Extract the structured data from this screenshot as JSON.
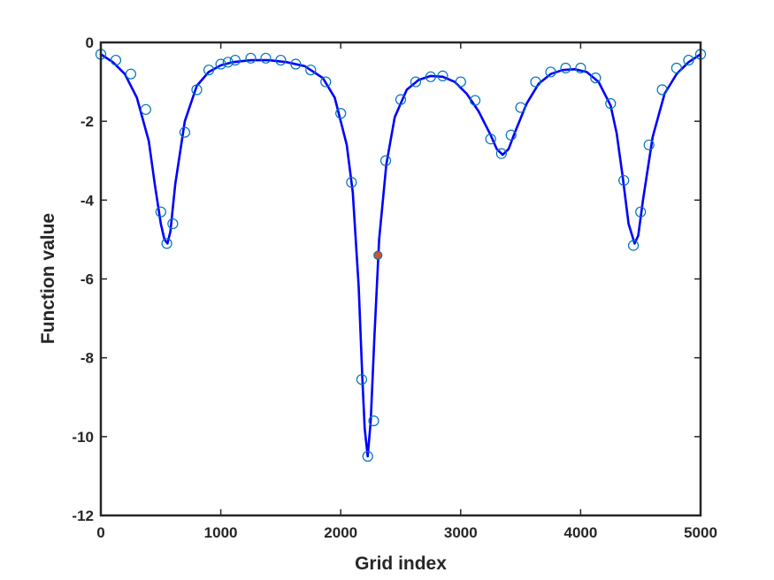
{
  "chart_data": {
    "type": "line",
    "title": "",
    "xlabel": "Grid index",
    "ylabel": "Function value",
    "xlim": [
      0,
      5000
    ],
    "ylim": [
      -12,
      0
    ],
    "xticks": [
      0,
      1000,
      2000,
      3000,
      4000,
      5000
    ],
    "yticks": [
      0,
      -2,
      -4,
      -6,
      -8,
      -10,
      -12
    ],
    "xtick_labels": [
      "0",
      "1000",
      "2000",
      "3000",
      "4000",
      "5000"
    ],
    "ytick_labels": [
      "0",
      "-2",
      "-4",
      "-6",
      "-8",
      "-10",
      "-12"
    ],
    "grid": false,
    "series": [
      {
        "style": "line",
        "color": "#0000ff",
        "x": [
          0,
          100,
          200,
          300,
          400,
          450,
          500,
          530,
          555,
          580,
          620,
          700,
          800,
          900,
          1000,
          1100,
          1250,
          1400,
          1550,
          1700,
          1850,
          1950,
          2050,
          2100,
          2150,
          2180,
          2200,
          2225,
          2250,
          2280,
          2320,
          2380,
          2450,
          2550,
          2650,
          2750,
          2850,
          2950,
          3050,
          3150,
          3250,
          3300,
          3350,
          3400,
          3450,
          3550,
          3650,
          3750,
          3850,
          3950,
          4050,
          4150,
          4250,
          4300,
          4350,
          4400,
          4450,
          4480,
          4520,
          4600,
          4700,
          4800,
          4900,
          5000
        ],
        "y": [
          -0.3,
          -0.5,
          -0.8,
          -1.4,
          -2.5,
          -3.6,
          -4.6,
          -5.0,
          -5.1,
          -4.8,
          -3.6,
          -2.0,
          -1.1,
          -0.75,
          -0.58,
          -0.5,
          -0.45,
          -0.45,
          -0.5,
          -0.6,
          -0.9,
          -1.4,
          -2.6,
          -3.8,
          -6.2,
          -8.5,
          -9.8,
          -10.5,
          -9.6,
          -7.5,
          -5.0,
          -3.1,
          -1.9,
          -1.2,
          -0.95,
          -0.85,
          -0.87,
          -1.0,
          -1.3,
          -1.75,
          -2.35,
          -2.7,
          -2.85,
          -2.7,
          -2.3,
          -1.55,
          -1.05,
          -0.8,
          -0.7,
          -0.68,
          -0.75,
          -1.0,
          -1.6,
          -2.3,
          -3.4,
          -4.6,
          -5.1,
          -4.9,
          -4.0,
          -2.4,
          -1.3,
          -0.8,
          -0.5,
          -0.3
        ]
      },
      {
        "style": "markers",
        "marker": "open-circle",
        "color": "#0072bd",
        "x": [
          0,
          125,
          250,
          375,
          500,
          550,
          600,
          700,
          800,
          900,
          1000,
          1060,
          1120,
          1250,
          1375,
          1500,
          1625,
          1750,
          1875,
          2000,
          2090,
          2175,
          2225,
          2275,
          2375,
          2500,
          2625,
          2750,
          2850,
          3000,
          3120,
          3250,
          3340,
          3420,
          3500,
          3625,
          3750,
          3875,
          4000,
          4125,
          4250,
          4360,
          4440,
          4500,
          4570,
          4680,
          4800,
          4900,
          5000
        ],
        "y": [
          -0.3,
          -0.45,
          -0.8,
          -1.7,
          -4.3,
          -5.1,
          -4.6,
          -2.28,
          -1.2,
          -0.7,
          -0.55,
          -0.5,
          -0.45,
          -0.4,
          -0.4,
          -0.45,
          -0.55,
          -0.7,
          -1.0,
          -1.8,
          -3.55,
          -8.55,
          -10.5,
          -9.6,
          -3.0,
          -1.45,
          -1.0,
          -0.87,
          -0.85,
          -1.0,
          -1.47,
          -2.45,
          -2.82,
          -2.35,
          -1.65,
          -1.0,
          -0.75,
          -0.65,
          -0.65,
          -0.9,
          -1.55,
          -3.5,
          -5.15,
          -4.3,
          -2.6,
          -1.2,
          -0.65,
          -0.45,
          -0.3
        ]
      },
      {
        "style": "highlight-point",
        "color": "#d95319",
        "x": [
          2310
        ],
        "y": [
          -5.4
        ]
      }
    ]
  }
}
